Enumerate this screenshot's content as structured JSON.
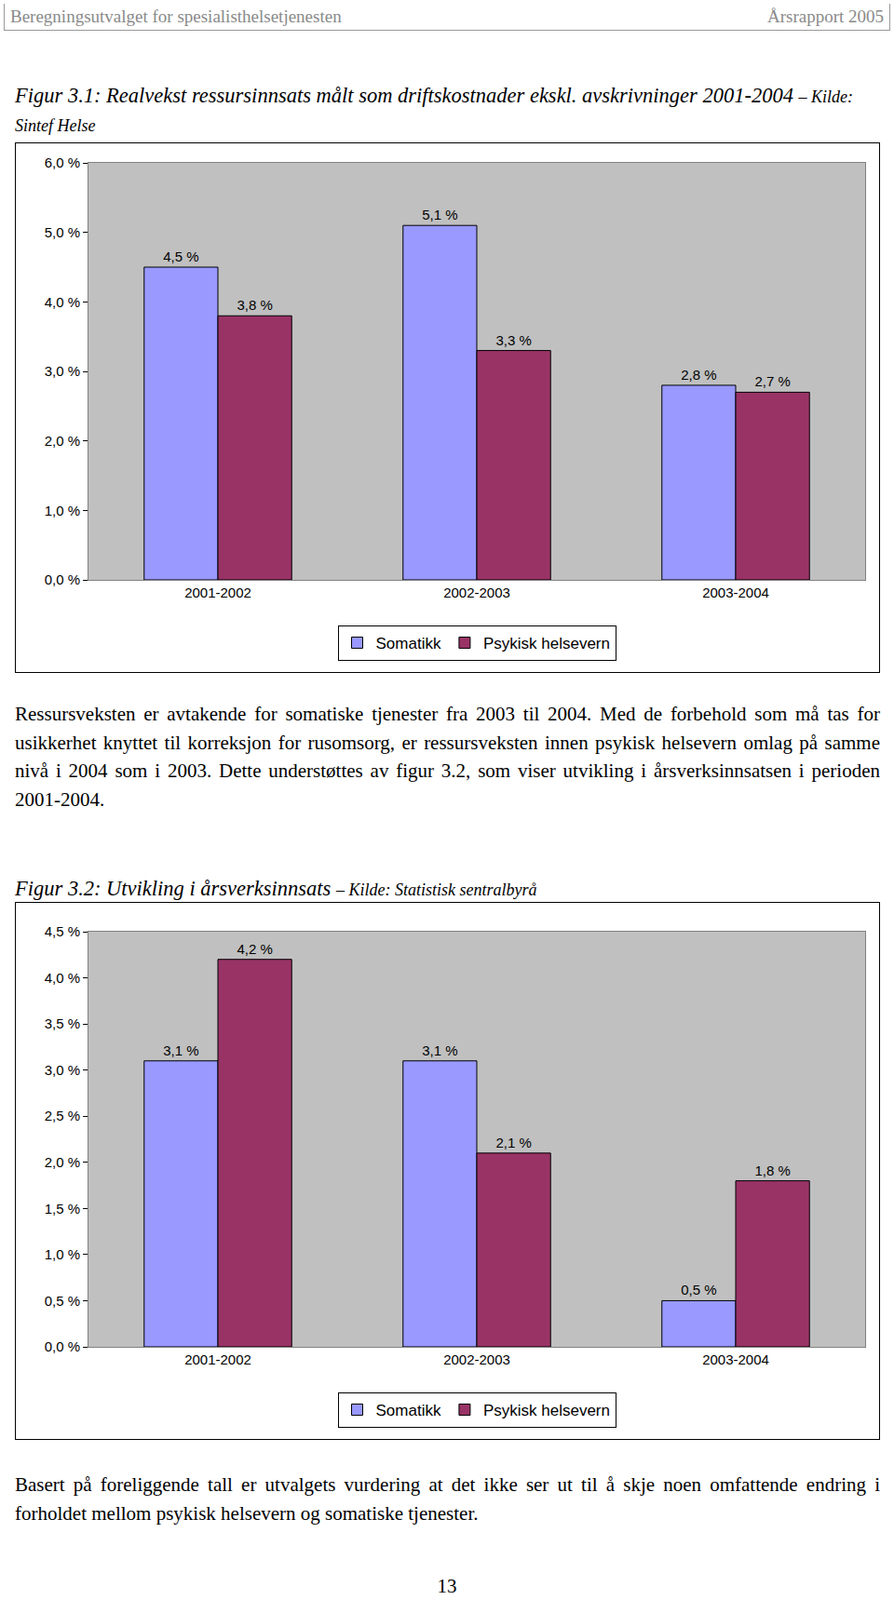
{
  "header": {
    "left": "Beregningsutvalget for spesialisthelsetjenesten",
    "right": "Årsrapport 2005"
  },
  "chart_data": [
    {
      "type": "bar",
      "title": "Figur 3.1: Realvekst ressursinnsats målt som driftskostnader ekskl. avskrivninger 2001-2004",
      "subtitle": "– Kilde: Sintef Helse",
      "categories": [
        "2001-2002",
        "2002-2003",
        "2003-2004"
      ],
      "series": [
        {
          "name": "Somatikk",
          "color": "#9999ff",
          "values": [
            4.5,
            5.1,
            2.8
          ],
          "value_labels": [
            "4,5 %",
            "5,1 %",
            "2,8 %"
          ]
        },
        {
          "name": "Psykisk helsevern",
          "color": "#993366",
          "values": [
            3.8,
            3.3,
            2.7
          ],
          "value_labels": [
            "3,8 %",
            "3,3 %",
            "2,7 %"
          ]
        }
      ],
      "ylim": [
        0,
        6
      ],
      "yticks": [
        {
          "value": 0,
          "label": "0,0 %"
        },
        {
          "value": 1,
          "label": "1,0 %"
        },
        {
          "value": 2,
          "label": "2,0 %"
        },
        {
          "value": 3,
          "label": "3,0 %"
        },
        {
          "value": 4,
          "label": "4,0 %"
        },
        {
          "value": 5,
          "label": "5,0 %"
        },
        {
          "value": 6,
          "label": "6,0 %"
        }
      ],
      "grid": false,
      "legend": "bottom",
      "data_labels": true
    },
    {
      "type": "bar",
      "title": "Figur 3.2: Utvikling i årsverksinnsats",
      "subtitle": "– Kilde: Statistisk sentralbyrå",
      "categories": [
        "2001-2002",
        "2002-2003",
        "2003-2004"
      ],
      "series": [
        {
          "name": "Somatikk",
          "color": "#9999ff",
          "values": [
            3.1,
            3.1,
            0.5
          ],
          "value_labels": [
            "3,1 %",
            "3,1 %",
            "0,5 %"
          ]
        },
        {
          "name": "Psykisk helsevern",
          "color": "#993366",
          "values": [
            4.2,
            2.1,
            1.8
          ],
          "value_labels": [
            "4,2 %",
            "2,1 %",
            "1,8 %"
          ]
        }
      ],
      "ylim": [
        0,
        4.5
      ],
      "yticks": [
        {
          "value": 0,
          "label": "0,0 %"
        },
        {
          "value": 0.5,
          "label": "0,5 %"
        },
        {
          "value": 1,
          "label": "1,0 %"
        },
        {
          "value": 1.5,
          "label": "1,5 %"
        },
        {
          "value": 2,
          "label": "2,0 %"
        },
        {
          "value": 2.5,
          "label": "2,5 %"
        },
        {
          "value": 3,
          "label": "3,0 %"
        },
        {
          "value": 3.5,
          "label": "3,5 %"
        },
        {
          "value": 4,
          "label": "4,0 %"
        },
        {
          "value": 4.5,
          "label": "4,5 %"
        }
      ],
      "grid": false,
      "legend": "bottom",
      "data_labels": true
    }
  ],
  "paragraphs": [
    "Ressursveksten er avtakende for somatiske tjenester fra 2003 til 2004. Med de forbehold som må tas for usikkerhet knyttet til korreksjon for rusomsorg, er ressursveksten innen psykisk helsevern omlag på samme nivå i 2004 som i 2003. Dette understøttes av figur 3.2, som viser utvikling i årsverksinnsatsen i perioden 2001-2004.",
    "Basert på foreliggende tall er utvalgets vurdering at det ikke ser ut til å skje noen omfattende endring i forholdet mellom psykisk helsevern og somatiske tjenester."
  ],
  "page_number": "13"
}
